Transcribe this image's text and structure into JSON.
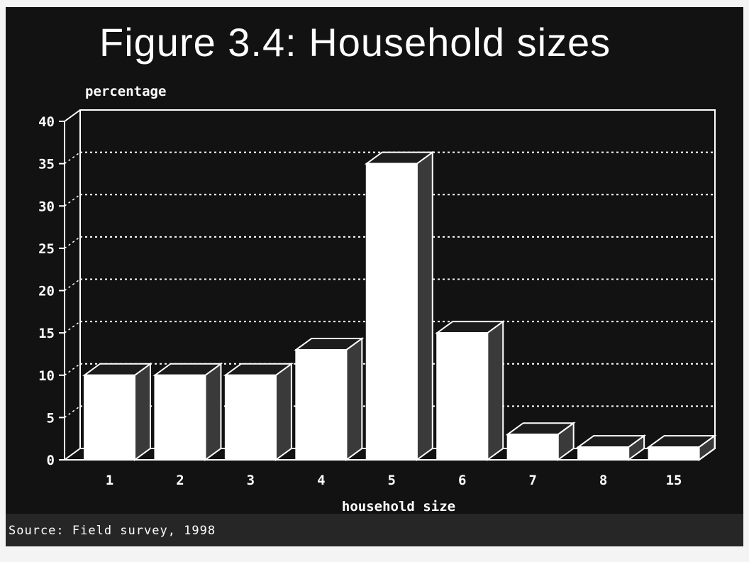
{
  "chart_data": {
    "type": "bar",
    "title": "Figure 3.4: Household sizes",
    "xlabel": "household size",
    "ylabel": "percentage",
    "categories": [
      "1",
      "2",
      "3",
      "4",
      "5",
      "6",
      "7",
      "8",
      "15"
    ],
    "values": [
      10,
      10,
      10,
      13,
      35,
      15,
      3,
      1.5,
      1.5
    ],
    "ylim": [
      0,
      40
    ],
    "yticks": [
      0,
      5,
      10,
      15,
      20,
      25,
      30,
      35,
      40
    ],
    "grid": true,
    "legend": "none"
  },
  "source": "Source: Field survey, 1998",
  "colors": {
    "background": "#121212",
    "bars": "#ffffff",
    "bar_side": "#3a3a3a",
    "axis": "#ffffff"
  }
}
